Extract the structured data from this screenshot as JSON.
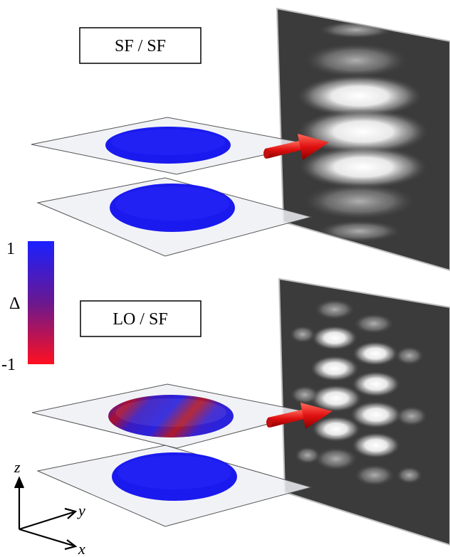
{
  "panels": [
    {
      "label": "SF / SF"
    },
    {
      "label": "LO / SF"
    }
  ],
  "colorbar": {
    "title": "Δ",
    "max_label": "1",
    "min_label": "-1",
    "high_color": "#1a20ff",
    "low_color": "#ff1020"
  },
  "axes": {
    "z_label": "z",
    "y_label": "y",
    "x_label": "x"
  },
  "colors": {
    "plane_fill": "#eef0f4",
    "ellipse_blue": "#1a1aee",
    "arrow_red": "#dd1111",
    "screen_bg": "#3a3a3a"
  }
}
